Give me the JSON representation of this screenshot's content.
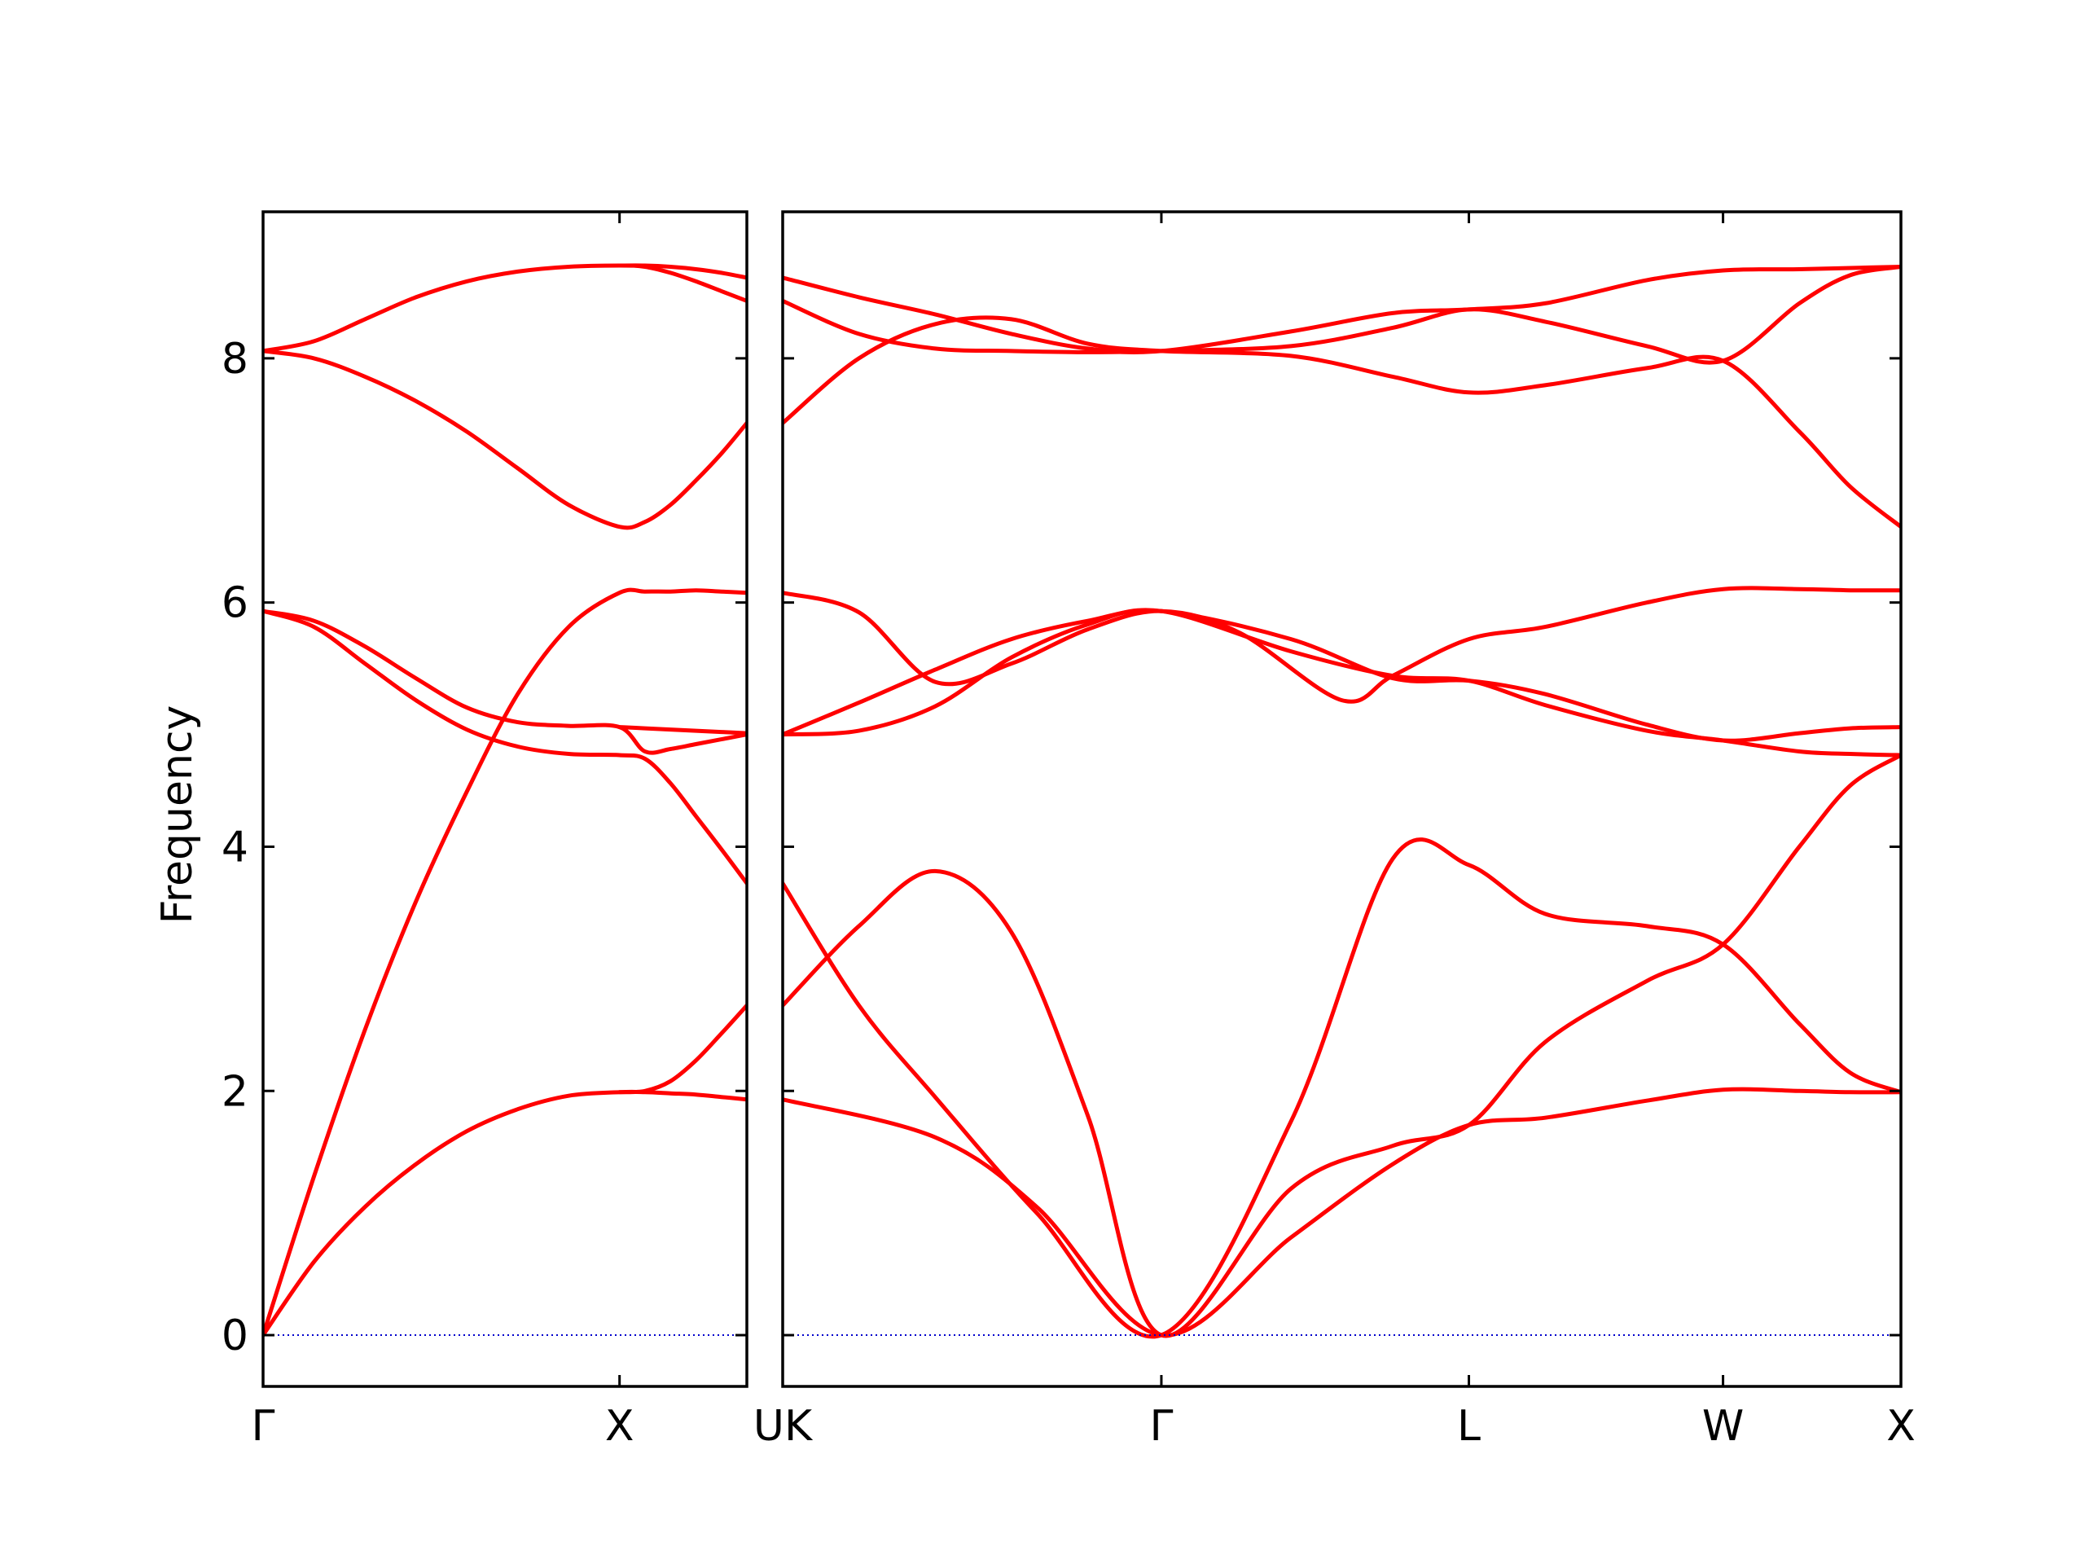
{
  "chart_data": {
    "type": "line",
    "title": "",
    "xlabel": "",
    "ylabel": "Frequency",
    "ylim": [
      -0.42,
      9.2
    ],
    "yticks": [
      0,
      2,
      4,
      6,
      8
    ],
    "line_color": "#ff0000",
    "zero_line_color": "#0000cc",
    "grid": false,
    "legend": "none",
    "panels": [
      {
        "name": "Γ-X-U",
        "xlim": [
          0,
          0.95
        ],
        "ticks": [
          {
            "x": 0,
            "label": "Γ"
          },
          {
            "x": 0.7,
            "label": "X"
          }
        ],
        "branches": [
          {
            "x": [
              0,
              0.1,
              0.2,
              0.3,
              0.4,
              0.5,
              0.6,
              0.7,
              0.75,
              0.8,
              0.85,
              0.9,
              0.95
            ],
            "y": [
              0,
              0.6,
              1.05,
              1.4,
              1.67,
              1.85,
              1.96,
              1.99,
              1.99,
              1.98,
              1.97,
              1.95,
              1.93
            ]
          },
          {
            "x": [
              0,
              0.1,
              0.2,
              0.3,
              0.4,
              0.5,
              0.6,
              0.7,
              0.75,
              0.8,
              0.85,
              0.9,
              0.95
            ],
            "y": [
              0,
              1.3,
              2.5,
              3.55,
              4.45,
              5.25,
              5.8,
              6.08,
              6.09,
              6.09,
              6.1,
              6.09,
              6.08
            ]
          },
          {
            "x": [
              0,
              0.1,
              0.2,
              0.3,
              0.4,
              0.5,
              0.6,
              0.7,
              0.75,
              0.8,
              0.85,
              0.9,
              0.95
            ],
            "y": [
              5.93,
              5.8,
              5.5,
              5.2,
              4.96,
              4.82,
              4.76,
              4.75,
              4.72,
              4.52,
              4.25,
              3.98,
              3.7
            ]
          },
          {
            "x": [
              0,
              0.1,
              0.2,
              0.3,
              0.4,
              0.5,
              0.6,
              0.7,
              0.75,
              0.8,
              0.85,
              0.9,
              0.95
            ],
            "y": [
              5.93,
              5.85,
              5.64,
              5.38,
              5.14,
              5.02,
              4.99,
              4.98,
              4.78,
              4.8,
              4.84,
              4.88,
              4.92
            ]
          },
          {
            "x": [
              0,
              0.7,
              0.75,
              0.8,
              0.85,
              0.9,
              0.95
            ],
            "y": [
              0,
              0,
              0,
              0,
              0,
              0,
              0
            ]
          },
          {
            "x": [
              0,
              0.1,
              0.2,
              0.3,
              0.4,
              0.5,
              0.6,
              0.7,
              0.75,
              0.8,
              0.85,
              0.9,
              0.95
            ],
            "y": [
              8.06,
              8.0,
              7.85,
              7.65,
              7.4,
              7.1,
              6.8,
              6.62,
              6.66,
              6.8,
              7.0,
              7.22,
              7.47
            ]
          },
          {
            "x": [
              0,
              0.1,
              0.2,
              0.3,
              0.4,
              0.5,
              0.6,
              0.7,
              0.75,
              0.8,
              0.85,
              0.9,
              0.95
            ],
            "y": [
              8.06,
              8.14,
              8.32,
              8.5,
              8.63,
              8.71,
              8.75,
              8.76,
              8.75,
              8.7,
              8.63,
              8.55,
              8.47
            ]
          },
          {
            "x": [
              0.7,
              0.75,
              0.8,
              0.85,
              0.9,
              0.95
            ],
            "y": [
              8.76,
              8.76,
              8.75,
              8.73,
              8.7,
              8.66
            ]
          },
          {
            "x": [
              0.7,
              0.75,
              0.8,
              0.85,
              0.9,
              0.95
            ],
            "y": [
              1.99,
              2.0,
              2.08,
              2.25,
              2.47,
              2.7
            ]
          },
          {
            "x": [
              0.7,
              0.75,
              0.8,
              0.85,
              0.9,
              0.95
            ],
            "y": [
              4.98,
              4.97,
              4.96,
              4.95,
              4.94,
              4.93
            ]
          }
        ]
      },
      {
        "name": "K-Γ-L-W-X",
        "xlim": [
          0,
          2.2
        ],
        "ticks": [
          {
            "x": 0,
            "label": "UK"
          },
          {
            "x": 0.745,
            "label": "Γ"
          },
          {
            "x": 1.35,
            "label": "L"
          },
          {
            "x": 1.85,
            "label": "W"
          },
          {
            "x": 2.2,
            "label": "X"
          }
        ],
        "branches": [
          {
            "x": [
              0,
              0.3,
              0.5,
              0.745,
              1.0,
              1.2,
              1.35,
              1.5,
              1.7,
              1.85,
              2.0,
              2.1,
              2.2
            ],
            "y": [
              1.93,
              1.62,
              1.05,
              0,
              0.8,
              1.4,
              1.72,
              1.78,
              1.92,
              2.01,
              2.0,
              1.99,
              1.99
            ]
          },
          {
            "x": [
              0,
              0.15,
              0.3,
              0.5,
              0.745,
              1.0,
              1.2,
              1.35,
              1.5,
              1.7,
              1.85,
              2.0,
              2.1,
              2.2
            ],
            "y": [
              3.7,
              2.7,
              1.95,
              1.0,
              0,
              1.75,
              3.9,
              3.85,
              3.45,
              3.35,
              3.2,
              2.55,
              2.15,
              1.99
            ]
          },
          {
            "x": [
              0,
              0.15,
              0.3,
              0.45,
              0.6,
              0.745,
              1.0,
              1.2,
              1.35,
              1.5,
              1.7,
              1.85,
              2.0,
              2.1,
              2.2
            ],
            "y": [
              2.7,
              3.35,
              3.8,
              3.3,
              1.8,
              0,
              1.2,
              1.55,
              1.72,
              2.4,
              2.9,
              3.2,
              4.0,
              4.5,
              4.75
            ]
          },
          {
            "x": [
              0,
              0.15,
              0.3,
              0.45,
              0.6,
              0.745,
              1.0,
              1.2,
              1.35,
              1.5,
              1.7,
              1.85,
              2.0,
              2.1,
              2.2
            ],
            "y": [
              4.92,
              4.95,
              5.15,
              5.55,
              5.82,
              5.93,
              5.6,
              5.4,
              5.36,
              5.16,
              4.95,
              4.87,
              4.78,
              4.76,
              4.75
            ]
          },
          {
            "x": [
              0,
              0.15,
              0.3,
              0.45,
              0.6,
              0.745,
              1.0,
              1.2,
              1.35,
              1.5,
              1.7,
              1.85,
              2.0,
              2.1,
              2.2
            ],
            "y": [
              4.92,
              5.18,
              5.45,
              5.7,
              5.85,
              5.93,
              5.7,
              5.38,
              5.36,
              5.25,
              5.0,
              4.87,
              4.93,
              4.97,
              4.98
            ]
          },
          {
            "x": [
              0,
              0.15,
              0.3,
              0.45,
              0.6,
              0.745,
              0.9,
              1.1,
              1.2,
              1.35,
              1.5,
              1.7,
              1.85,
              2.0,
              2.1,
              2.2
            ],
            "y": [
              6.08,
              5.92,
              5.35,
              5.5,
              5.78,
              5.93,
              5.75,
              5.2,
              5.4,
              5.7,
              5.8,
              6.0,
              6.11,
              6.11,
              6.1,
              6.1
            ]
          },
          {
            "x": [
              0,
              0.15,
              0.3,
              0.45,
              0.6,
              0.745,
              1.0,
              1.2,
              1.35,
              1.5,
              1.7,
              1.85,
              2.0,
              2.1,
              2.2
            ],
            "y": [
              7.47,
              8.0,
              8.28,
              8.32,
              8.12,
              8.06,
              8.02,
              7.85,
              7.72,
              7.78,
              7.92,
              7.98,
              7.4,
              6.95,
              6.62
            ]
          },
          {
            "x": [
              0,
              0.15,
              0.3,
              0.45,
              0.6,
              0.745,
              1.0,
              1.2,
              1.35,
              1.5,
              1.7,
              1.85,
              2.0,
              2.1,
              2.2
            ],
            "y": [
              8.47,
              8.2,
              8.08,
              8.06,
              8.05,
              8.06,
              8.1,
              8.25,
              8.4,
              8.3,
              8.1,
              7.98,
              8.45,
              8.68,
              8.75
            ]
          },
          {
            "x": [
              0,
              0.15,
              0.3,
              0.45,
              0.6,
              0.745,
              1.0,
              1.2,
              1.35,
              1.5,
              1.7,
              1.85,
              2.0,
              2.1,
              2.2
            ],
            "y": [
              8.66,
              8.5,
              8.36,
              8.2,
              8.08,
              8.06,
              8.22,
              8.37,
              8.4,
              8.45,
              8.64,
              8.72,
              8.73,
              8.74,
              8.75
            ]
          },
          {
            "x": [
              0,
              0.745,
              1.35,
              1.85,
              2.2
            ],
            "y": [
              0,
              0,
              0,
              0,
              0
            ]
          }
        ]
      }
    ]
  }
}
